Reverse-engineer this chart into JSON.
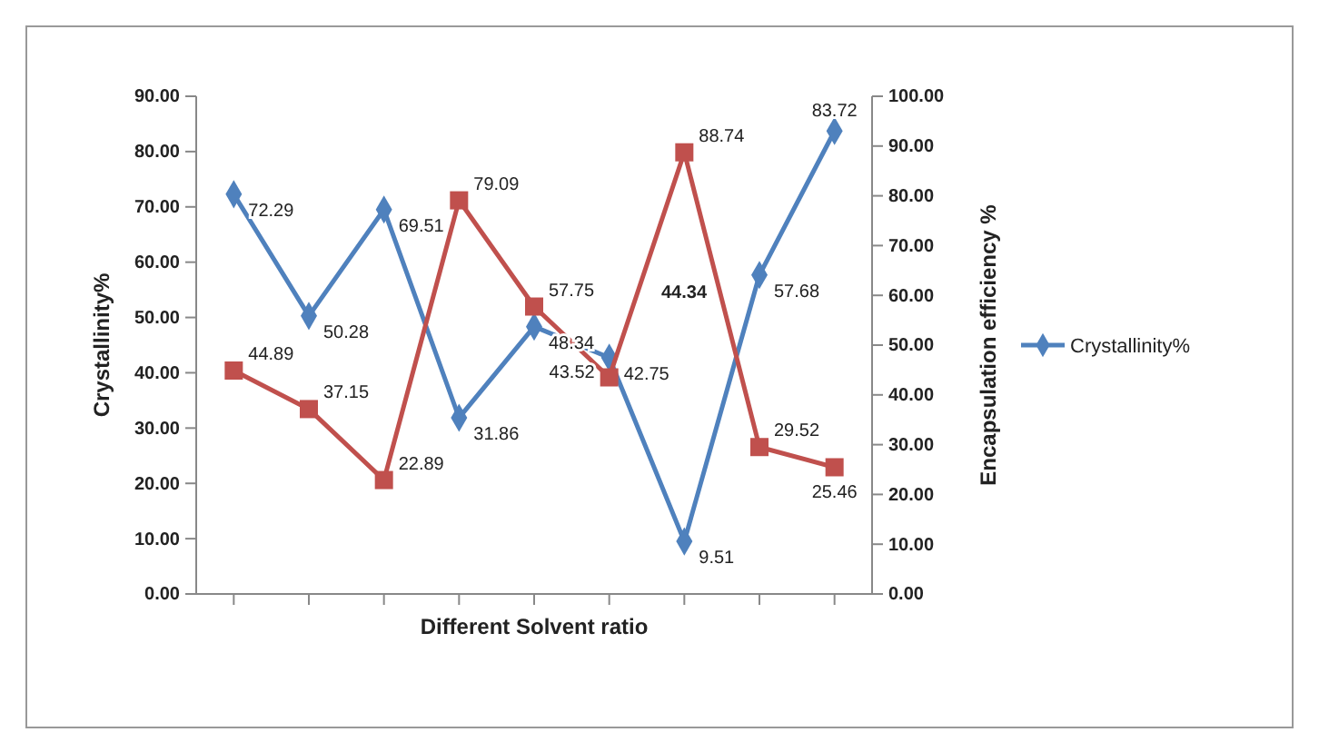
{
  "chart_data": {
    "type": "line",
    "xlabel": "Different Solvent ratio",
    "ylabel": "Crystallinity%",
    "y2label": "Encapsulation efficiency %",
    "categories": [
      null,
      null,
      null,
      null,
      null,
      null,
      null,
      null,
      null
    ],
    "series": [
      {
        "name": "Crystallinity%",
        "color": "#4f81bd",
        "marker": "diamond",
        "values": [
          72.29,
          50.28,
          69.51,
          31.86,
          48.34,
          42.75,
          9.51,
          57.68,
          83.72
        ]
      },
      {
        "color": "#c0504d",
        "marker": "square",
        "axis": "y2",
        "values": [
          44.89,
          37.15,
          22.89,
          79.09,
          57.75,
          43.52,
          88.74,
          29.52,
          25.46
        ]
      }
    ],
    "ylim": [
      0,
      90
    ],
    "yticks": [
      {
        "value": 0,
        "label": "0.00"
      },
      {
        "value": 10,
        "label": "10.00"
      },
      {
        "value": 20,
        "label": "20.00"
      },
      {
        "value": 30,
        "label": "30.00"
      },
      {
        "value": 40,
        "label": "40.00"
      },
      {
        "value": 50,
        "label": "50.00"
      },
      {
        "value": 60,
        "label": "60.00"
      },
      {
        "value": 70,
        "label": "70.00"
      },
      {
        "value": 80,
        "label": "80.00"
      },
      {
        "value": 90,
        "label": "90.00"
      }
    ],
    "y2lim": [
      0,
      100
    ],
    "y2ticks": [
      {
        "value": 0,
        "label": "0.00"
      },
      {
        "value": 10,
        "label": "10.00"
      },
      {
        "value": 20,
        "label": "20.00"
      },
      {
        "value": 30,
        "label": "30.00"
      },
      {
        "value": 40,
        "label": "40.00"
      },
      {
        "value": 50,
        "label": "50.00"
      },
      {
        "value": 60,
        "label": "60.00"
      },
      {
        "value": 70,
        "label": "70.00"
      },
      {
        "value": 80,
        "label": "80.00"
      },
      {
        "value": 90,
        "label": "90.00"
      },
      {
        "value": 100,
        "label": "100.00"
      }
    ],
    "data_labels": true,
    "grid": false,
    "legend": "right",
    "line_style": "solid",
    "annotations": [
      "44.34"
    ]
  }
}
